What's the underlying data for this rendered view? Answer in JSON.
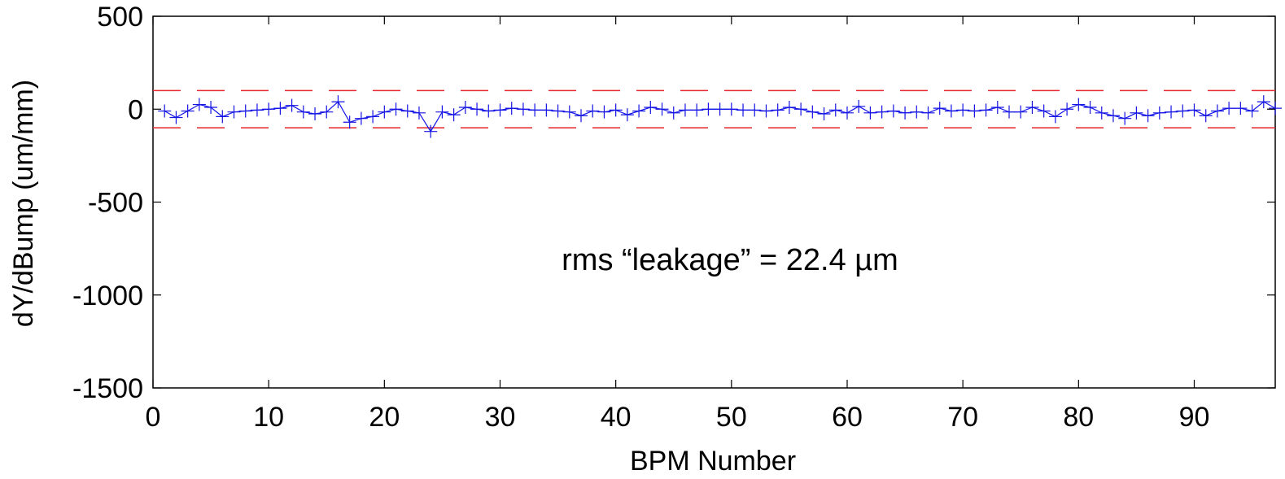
{
  "chart_data": {
    "type": "line",
    "title": "",
    "xlabel": "BPM Number",
    "ylabel": "dY/dBump (um/mm)",
    "xlim": [
      0,
      97
    ],
    "ylim": [
      -1500,
      500
    ],
    "x_ticks": [
      0,
      10,
      20,
      30,
      40,
      50,
      60,
      70,
      80,
      90
    ],
    "x_tick_labels": [
      "0",
      "10",
      "20",
      "30",
      "40",
      "50",
      "60",
      "70",
      "80",
      "90"
    ],
    "y_ticks": [
      500,
      0,
      -500,
      -1000,
      -1500
    ],
    "y_tick_labels": [
      "500",
      "0",
      "-500",
      "-1000",
      "-1500"
    ],
    "grid": false,
    "legend": "none",
    "annotation": "rms “leakage” = 22.4 µm",
    "thresholds": [
      {
        "value": 100,
        "color": "#e8282e",
        "style": "dashed"
      },
      {
        "value": -100,
        "color": "#e8282e",
        "style": "dashed"
      }
    ],
    "series": [
      {
        "color": "#1414e6",
        "marker": "plus",
        "x": [
          1,
          2,
          3,
          4,
          5,
          6,
          7,
          8,
          9,
          10,
          11,
          12,
          13,
          14,
          15,
          16,
          17,
          18,
          19,
          20,
          21,
          22,
          23,
          24,
          25,
          26,
          27,
          28,
          29,
          30,
          31,
          32,
          33,
          34,
          35,
          36,
          37,
          38,
          39,
          40,
          41,
          42,
          43,
          44,
          45,
          46,
          47,
          48,
          49,
          50,
          51,
          52,
          53,
          54,
          55,
          56,
          57,
          58,
          59,
          60,
          61,
          62,
          63,
          64,
          65,
          66,
          67,
          68,
          69,
          70,
          71,
          72,
          73,
          74,
          75,
          76,
          77,
          78,
          79,
          80,
          81,
          82,
          83,
          84,
          85,
          86,
          87,
          88,
          89,
          90,
          91,
          92,
          93,
          94,
          95,
          96,
          97
        ],
        "y": [
          -10,
          -45,
          -10,
          25,
          10,
          -40,
          -15,
          -10,
          -5,
          0,
          5,
          20,
          -15,
          -25,
          -15,
          40,
          -70,
          -50,
          -40,
          -15,
          0,
          -10,
          -20,
          -120,
          -15,
          -30,
          10,
          0,
          -10,
          -5,
          5,
          0,
          -5,
          -5,
          -10,
          -15,
          -35,
          -10,
          -15,
          -5,
          -30,
          -10,
          10,
          0,
          -20,
          -5,
          -5,
          0,
          0,
          0,
          -5,
          -5,
          -10,
          -5,
          10,
          0,
          -15,
          -25,
          -5,
          -20,
          15,
          -20,
          -15,
          -10,
          -20,
          -15,
          -20,
          5,
          -10,
          -5,
          -10,
          -5,
          10,
          -15,
          -15,
          10,
          -10,
          -40,
          0,
          25,
          10,
          -20,
          -35,
          -50,
          -20,
          -35,
          -20,
          -15,
          -10,
          -5,
          -35,
          -10,
          5,
          5,
          -10,
          40,
          5
        ]
      }
    ]
  }
}
